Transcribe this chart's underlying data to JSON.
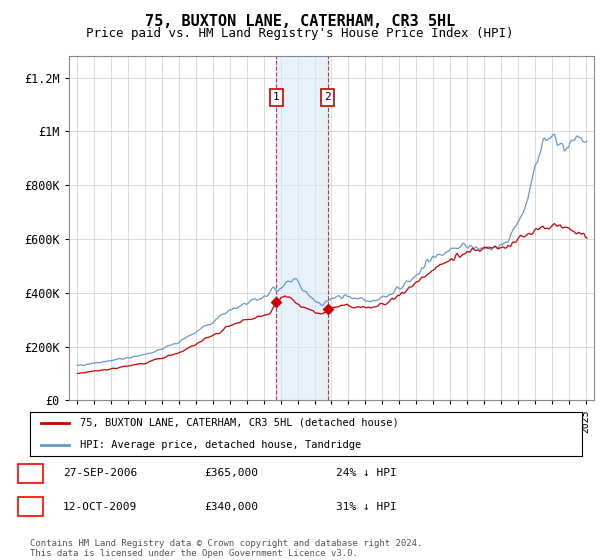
{
  "title": "75, BUXTON LANE, CATERHAM, CR3 5HL",
  "subtitle": "Price paid vs. HM Land Registry's House Price Index (HPI)",
  "title_fontsize": 11,
  "subtitle_fontsize": 9,
  "ylabel_ticks": [
    "£0",
    "£200K",
    "£400K",
    "£600K",
    "£800K",
    "£1M",
    "£1.2M"
  ],
  "ytick_vals": [
    0,
    200000,
    400000,
    600000,
    800000,
    1000000,
    1200000
  ],
  "ylim": [
    0,
    1280000
  ],
  "xlim_start": 1994.5,
  "xlim_end": 2025.5,
  "transaction1": {
    "date_x": 2006.74,
    "price": 365000,
    "label": "1",
    "date_str": "27-SEP-2006",
    "pct": "24%"
  },
  "transaction2": {
    "date_x": 2009.78,
    "price": 340000,
    "label": "2",
    "date_str": "12-OCT-2009",
    "pct": "31%"
  },
  "shade_color": "#d6e8f7",
  "shade_alpha": 0.6,
  "red_line_color": "#cc0000",
  "blue_line_color": "#6699cc",
  "legend1": "75, BUXTON LANE, CATERHAM, CR3 5HL (detached house)",
  "legend2": "HPI: Average price, detached house, Tandridge",
  "footnote": "Contains HM Land Registry data © Crown copyright and database right 2024.\nThis data is licensed under the Open Government Licence v3.0.",
  "background_color": "#ffffff",
  "grid_color": "#cccccc",
  "hpi_x": [
    1995.0,
    1995.08,
    1995.17,
    1995.25,
    1995.33,
    1995.42,
    1995.5,
    1995.58,
    1995.67,
    1995.75,
    1995.83,
    1995.92,
    1996.0,
    1996.08,
    1996.17,
    1996.25,
    1996.33,
    1996.42,
    1996.5,
    1996.58,
    1996.67,
    1996.75,
    1996.83,
    1996.92,
    1997.0,
    1997.08,
    1997.17,
    1997.25,
    1997.33,
    1997.42,
    1997.5,
    1997.58,
    1997.67,
    1997.75,
    1997.83,
    1997.92,
    1998.0,
    1998.08,
    1998.17,
    1998.25,
    1998.33,
    1998.42,
    1998.5,
    1998.58,
    1998.67,
    1998.75,
    1998.83,
    1998.92,
    1999.0,
    1999.08,
    1999.17,
    1999.25,
    1999.33,
    1999.42,
    1999.5,
    1999.58,
    1999.67,
    1999.75,
    1999.83,
    1999.92,
    2000.0,
    2000.08,
    2000.17,
    2000.25,
    2000.33,
    2000.42,
    2000.5,
    2000.58,
    2000.67,
    2000.75,
    2000.83,
    2000.92,
    2001.0,
    2001.08,
    2001.17,
    2001.25,
    2001.33,
    2001.42,
    2001.5,
    2001.58,
    2001.67,
    2001.75,
    2001.83,
    2001.92,
    2002.0,
    2002.08,
    2002.17,
    2002.25,
    2002.33,
    2002.42,
    2002.5,
    2002.58,
    2002.67,
    2002.75,
    2002.83,
    2002.92,
    2003.0,
    2003.08,
    2003.17,
    2003.25,
    2003.33,
    2003.42,
    2003.5,
    2003.58,
    2003.67,
    2003.75,
    2003.83,
    2003.92,
    2004.0,
    2004.08,
    2004.17,
    2004.25,
    2004.33,
    2004.42,
    2004.5,
    2004.58,
    2004.67,
    2004.75,
    2004.83,
    2004.92,
    2005.0,
    2005.08,
    2005.17,
    2005.25,
    2005.33,
    2005.42,
    2005.5,
    2005.58,
    2005.67,
    2005.75,
    2005.83,
    2005.92,
    2006.0,
    2006.08,
    2006.17,
    2006.25,
    2006.33,
    2006.42,
    2006.5,
    2006.58,
    2006.67,
    2006.74,
    2006.83,
    2006.92,
    2007.0,
    2007.08,
    2007.17,
    2007.25,
    2007.33,
    2007.42,
    2007.5,
    2007.58,
    2007.67,
    2007.75,
    2007.83,
    2007.92,
    2008.0,
    2008.08,
    2008.17,
    2008.25,
    2008.33,
    2008.42,
    2008.5,
    2008.58,
    2008.67,
    2008.75,
    2008.83,
    2008.92,
    2009.0,
    2009.08,
    2009.17,
    2009.25,
    2009.33,
    2009.42,
    2009.5,
    2009.58,
    2009.67,
    2009.75,
    2009.78,
    2009.92,
    2010.0,
    2010.08,
    2010.17,
    2010.25,
    2010.33,
    2010.42,
    2010.5,
    2010.58,
    2010.67,
    2010.75,
    2010.83,
    2010.92,
    2011.0,
    2011.08,
    2011.17,
    2011.25,
    2011.33,
    2011.42,
    2011.5,
    2011.58,
    2011.67,
    2011.75,
    2011.83,
    2011.92,
    2012.0,
    2012.08,
    2012.17,
    2012.25,
    2012.33,
    2012.42,
    2012.5,
    2012.58,
    2012.67,
    2012.75,
    2012.83,
    2012.92,
    2013.0,
    2013.08,
    2013.17,
    2013.25,
    2013.33,
    2013.42,
    2013.5,
    2013.58,
    2013.67,
    2013.75,
    2013.83,
    2013.92,
    2014.0,
    2014.08,
    2014.17,
    2014.25,
    2014.33,
    2014.42,
    2014.5,
    2014.58,
    2014.67,
    2014.75,
    2014.83,
    2014.92,
    2015.0,
    2015.08,
    2015.17,
    2015.25,
    2015.33,
    2015.42,
    2015.5,
    2015.58,
    2015.67,
    2015.75,
    2015.83,
    2015.92,
    2016.0,
    2016.08,
    2016.17,
    2016.25,
    2016.33,
    2016.42,
    2016.5,
    2016.58,
    2016.67,
    2016.75,
    2016.83,
    2016.92,
    2017.0,
    2017.08,
    2017.17,
    2017.25,
    2017.33,
    2017.42,
    2017.5,
    2017.58,
    2017.67,
    2017.75,
    2017.83,
    2017.92,
    2018.0,
    2018.08,
    2018.17,
    2018.25,
    2018.33,
    2018.42,
    2018.5,
    2018.58,
    2018.67,
    2018.75,
    2018.83,
    2018.92,
    2019.0,
    2019.08,
    2019.17,
    2019.25,
    2019.33,
    2019.42,
    2019.5,
    2019.58,
    2019.67,
    2019.75,
    2019.83,
    2019.92,
    2020.0,
    2020.08,
    2020.17,
    2020.25,
    2020.33,
    2020.42,
    2020.5,
    2020.58,
    2020.67,
    2020.75,
    2020.83,
    2020.92,
    2021.0,
    2021.08,
    2021.17,
    2021.25,
    2021.33,
    2021.42,
    2021.5,
    2021.58,
    2021.67,
    2021.75,
    2021.83,
    2021.92,
    2022.0,
    2022.08,
    2022.17,
    2022.25,
    2022.33,
    2022.42,
    2022.5,
    2022.58,
    2022.67,
    2022.75,
    2022.83,
    2022.92,
    2023.0,
    2023.08,
    2023.17,
    2023.25,
    2023.33,
    2023.42,
    2023.5,
    2023.58,
    2023.67,
    2023.75,
    2023.83,
    2023.92,
    2024.0,
    2024.08,
    2024.17,
    2024.25,
    2024.33,
    2024.42,
    2024.5,
    2024.58,
    2024.67,
    2024.75,
    2024.83,
    2024.92,
    2025.0
  ],
  "hpi_anchor": [
    [
      1995.0,
      130000
    ],
    [
      1996.0,
      138000
    ],
    [
      1997.0,
      148000
    ],
    [
      1998.0,
      158000
    ],
    [
      1999.0,
      170000
    ],
    [
      2000.0,
      192000
    ],
    [
      2001.0,
      218000
    ],
    [
      2002.0,
      255000
    ],
    [
      2003.0,
      295000
    ],
    [
      2004.0,
      338000
    ],
    [
      2005.0,
      360000
    ],
    [
      2006.0,
      388000
    ],
    [
      2007.0,
      420000
    ],
    [
      2007.5,
      445000
    ],
    [
      2007.75,
      455000
    ],
    [
      2008.0,
      440000
    ],
    [
      2008.5,
      400000
    ],
    [
      2009.0,
      370000
    ],
    [
      2009.5,
      358000
    ],
    [
      2010.0,
      375000
    ],
    [
      2010.5,
      385000
    ],
    [
      2011.0,
      385000
    ],
    [
      2011.5,
      378000
    ],
    [
      2012.0,
      375000
    ],
    [
      2012.5,
      372000
    ],
    [
      2013.0,
      380000
    ],
    [
      2013.5,
      395000
    ],
    [
      2014.0,
      415000
    ],
    [
      2014.5,
      445000
    ],
    [
      2015.0,
      470000
    ],
    [
      2015.5,
      500000
    ],
    [
      2016.0,
      530000
    ],
    [
      2016.5,
      545000
    ],
    [
      2017.0,
      558000
    ],
    [
      2017.5,
      568000
    ],
    [
      2018.0,
      572000
    ],
    [
      2018.5,
      568000
    ],
    [
      2019.0,
      565000
    ],
    [
      2019.5,
      570000
    ],
    [
      2020.0,
      575000
    ],
    [
      2020.5,
      600000
    ],
    [
      2021.0,
      648000
    ],
    [
      2021.5,
      730000
    ],
    [
      2022.0,
      850000
    ],
    [
      2022.25,
      920000
    ],
    [
      2022.5,
      960000
    ],
    [
      2022.75,
      980000
    ],
    [
      2023.0,
      990000
    ],
    [
      2023.25,
      970000
    ],
    [
      2023.5,
      950000
    ],
    [
      2023.75,
      940000
    ],
    [
      2024.0,
      945000
    ],
    [
      2024.25,
      960000
    ],
    [
      2024.5,
      970000
    ],
    [
      2024.75,
      975000
    ],
    [
      2025.0,
      960000
    ]
  ],
  "red_anchor": [
    [
      1995.0,
      100000
    ],
    [
      1996.0,
      108000
    ],
    [
      1997.0,
      118000
    ],
    [
      1998.0,
      128000
    ],
    [
      1999.0,
      140000
    ],
    [
      2000.0,
      158000
    ],
    [
      2001.0,
      178000
    ],
    [
      2002.0,
      208000
    ],
    [
      2003.0,
      242000
    ],
    [
      2004.0,
      278000
    ],
    [
      2005.0,
      298000
    ],
    [
      2006.0,
      315000
    ],
    [
      2006.5,
      335000
    ],
    [
      2006.74,
      365000
    ],
    [
      2007.0,
      375000
    ],
    [
      2007.25,
      390000
    ],
    [
      2007.5,
      385000
    ],
    [
      2007.75,
      370000
    ],
    [
      2008.0,
      355000
    ],
    [
      2008.5,
      340000
    ],
    [
      2009.0,
      328000
    ],
    [
      2009.5,
      322000
    ],
    [
      2009.78,
      340000
    ],
    [
      2010.0,
      345000
    ],
    [
      2010.5,
      350000
    ],
    [
      2011.0,
      352000
    ],
    [
      2011.5,
      348000
    ],
    [
      2012.0,
      345000
    ],
    [
      2012.5,
      348000
    ],
    [
      2013.0,
      358000
    ],
    [
      2013.5,
      372000
    ],
    [
      2014.0,
      390000
    ],
    [
      2014.5,
      415000
    ],
    [
      2015.0,
      438000
    ],
    [
      2015.5,
      462000
    ],
    [
      2016.0,
      488000
    ],
    [
      2016.5,
      505000
    ],
    [
      2017.0,
      522000
    ],
    [
      2017.5,
      538000
    ],
    [
      2018.0,
      552000
    ],
    [
      2018.5,
      558000
    ],
    [
      2019.0,
      562000
    ],
    [
      2019.5,
      568000
    ],
    [
      2020.0,
      572000
    ],
    [
      2020.5,
      580000
    ],
    [
      2021.0,
      598000
    ],
    [
      2021.5,
      608000
    ],
    [
      2022.0,
      628000
    ],
    [
      2022.5,
      648000
    ],
    [
      2023.0,
      655000
    ],
    [
      2023.5,
      650000
    ],
    [
      2024.0,
      638000
    ],
    [
      2024.5,
      628000
    ],
    [
      2025.0,
      618000
    ]
  ]
}
